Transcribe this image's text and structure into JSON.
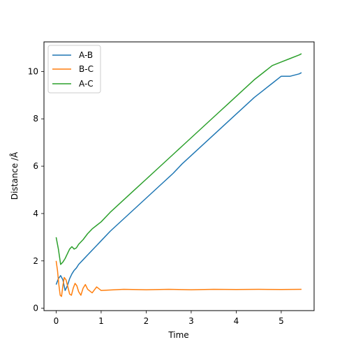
{
  "chart_data": {
    "type": "line",
    "title": "",
    "xlabel": "Time",
    "ylabel": "Distance /Å",
    "xlim": [
      -0.27,
      5.73
    ],
    "ylim": [
      -0.1,
      11.25
    ],
    "xticks": [
      0,
      1,
      2,
      3,
      4,
      5
    ],
    "yticks": [
      0,
      2,
      4,
      6,
      8,
      10
    ],
    "grid": false,
    "legend": {
      "placement": "top-left"
    },
    "series": [
      {
        "name": "A-B",
        "color": "#1f77b4",
        "x": [
          0.0,
          0.05,
          0.1,
          0.15,
          0.2,
          0.25,
          0.3,
          0.35,
          0.4,
          0.45,
          0.5,
          0.6,
          0.7,
          0.8,
          0.9,
          1.0,
          1.2,
          1.4,
          1.6,
          1.8,
          2.0,
          2.2,
          2.4,
          2.6,
          2.8,
          3.0,
          3.2,
          3.4,
          3.6,
          3.8,
          4.0,
          4.2,
          4.4,
          4.6,
          4.8,
          5.0,
          5.2,
          5.4,
          5.45
        ],
        "y": [
          1.0,
          1.25,
          1.38,
          1.2,
          0.75,
          0.95,
          1.25,
          1.45,
          1.6,
          1.7,
          1.85,
          2.05,
          2.25,
          2.45,
          2.65,
          2.85,
          3.25,
          3.6,
          3.95,
          4.3,
          4.65,
          5.0,
          5.35,
          5.7,
          6.1,
          6.45,
          6.8,
          7.15,
          7.5,
          7.85,
          8.2,
          8.55,
          8.9,
          9.2,
          9.5,
          9.8,
          9.8,
          9.9,
          9.95
        ]
      },
      {
        "name": "B-C",
        "color": "#ff7f0e",
        "x": [
          0.0,
          0.03,
          0.06,
          0.09,
          0.12,
          0.15,
          0.18,
          0.22,
          0.26,
          0.3,
          0.34,
          0.38,
          0.42,
          0.46,
          0.5,
          0.55,
          0.6,
          0.65,
          0.7,
          0.8,
          0.9,
          1.0,
          1.5,
          2.0,
          2.5,
          3.0,
          3.5,
          4.0,
          4.5,
          5.0,
          5.45
        ],
        "y": [
          2.0,
          1.6,
          1.0,
          0.55,
          0.5,
          0.95,
          1.3,
          1.2,
          0.9,
          0.6,
          0.55,
          0.85,
          1.05,
          0.95,
          0.7,
          0.55,
          0.85,
          1.0,
          0.8,
          0.65,
          0.9,
          0.75,
          0.8,
          0.78,
          0.8,
          0.78,
          0.8,
          0.79,
          0.8,
          0.79,
          0.8
        ]
      },
      {
        "name": "A-C",
        "color": "#2ca02c",
        "x": [
          0.0,
          0.05,
          0.1,
          0.15,
          0.2,
          0.25,
          0.3,
          0.35,
          0.4,
          0.45,
          0.5,
          0.6,
          0.7,
          0.8,
          0.9,
          1.0,
          1.2,
          1.4,
          1.6,
          1.8,
          2.0,
          2.2,
          2.4,
          2.6,
          2.8,
          3.0,
          3.2,
          3.4,
          3.6,
          3.8,
          4.0,
          4.2,
          4.4,
          4.6,
          4.8,
          5.0,
          5.2,
          5.4,
          5.45
        ],
        "y": [
          3.0,
          2.5,
          1.85,
          1.95,
          2.1,
          2.3,
          2.5,
          2.6,
          2.5,
          2.55,
          2.7,
          2.9,
          3.15,
          3.35,
          3.5,
          3.65,
          4.05,
          4.4,
          4.75,
          5.1,
          5.45,
          5.8,
          6.15,
          6.5,
          6.85,
          7.2,
          7.55,
          7.9,
          8.25,
          8.6,
          8.95,
          9.3,
          9.65,
          9.95,
          10.25,
          10.4,
          10.55,
          10.7,
          10.75
        ]
      }
    ]
  }
}
